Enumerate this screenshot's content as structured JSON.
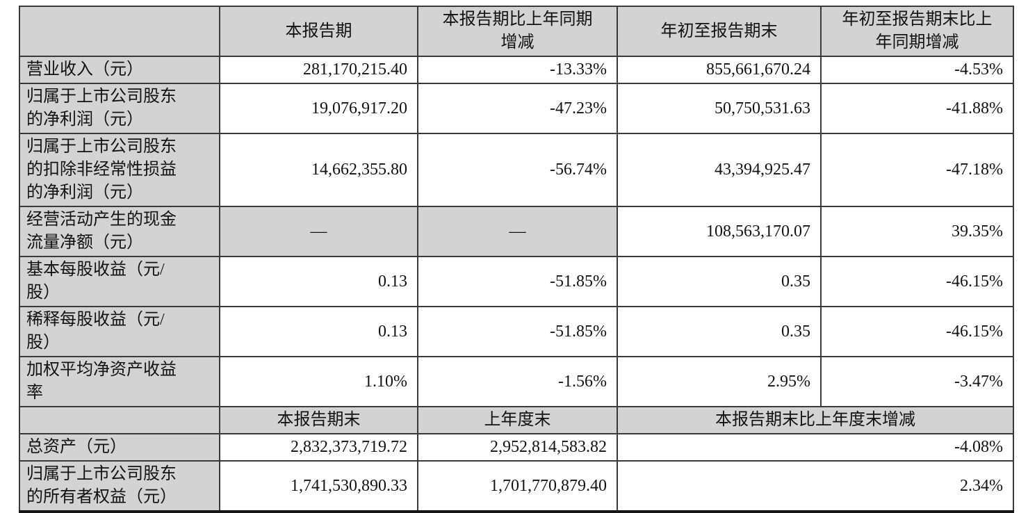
{
  "colors": {
    "cell_shading_gray": "#d3d3d3",
    "grid_line": "#3a3a3a",
    "text": "#121212"
  },
  "table": {
    "rows": [
      {
        "header": true,
        "cells": [
          {
            "t": "",
            "gray": true
          },
          {
            "t": "本报告期",
            "gray": true,
            "align": "center"
          },
          {
            "t": "本报告期比上年同期\n增减",
            "gray": true,
            "align": "center"
          },
          {
            "t": "年初至报告期末",
            "gray": true,
            "align": "center"
          },
          {
            "t": "年初至报告期末比上\n年同期增减",
            "gray": true,
            "align": "center"
          }
        ]
      },
      {
        "cells": [
          {
            "t": "营业收入（元）",
            "gray": true,
            "align": "left"
          },
          {
            "t": "281,170,215.40",
            "align": "right"
          },
          {
            "t": "-13.33%",
            "align": "right"
          },
          {
            "t": "855,661,670.24",
            "align": "right"
          },
          {
            "t": "-4.53%",
            "align": "right"
          }
        ]
      },
      {
        "cells": [
          {
            "t": "归属于上市公司股东\n的净利润（元）",
            "gray": true,
            "align": "left"
          },
          {
            "t": "19,076,917.20",
            "align": "right"
          },
          {
            "t": "-47.23%",
            "align": "right"
          },
          {
            "t": "50,750,531.63",
            "align": "right"
          },
          {
            "t": "-41.88%",
            "align": "right"
          }
        ]
      },
      {
        "cells": [
          {
            "t": "归属于上市公司股东\n的扣除非经常性损益\n的净利润（元）",
            "gray": true,
            "align": "left"
          },
          {
            "t": "14,662,355.80",
            "align": "right"
          },
          {
            "t": "-56.74%",
            "align": "right"
          },
          {
            "t": "43,394,925.47",
            "align": "right"
          },
          {
            "t": "-47.18%",
            "align": "right"
          }
        ]
      },
      {
        "cells": [
          {
            "t": "经营活动产生的现金\n流量净额（元）",
            "gray": true,
            "align": "left"
          },
          {
            "t": "—",
            "gray": true,
            "align": "center"
          },
          {
            "t": "—",
            "gray": true,
            "align": "center"
          },
          {
            "t": "108,563,170.07",
            "align": "right"
          },
          {
            "t": "39.35%",
            "align": "right"
          }
        ]
      },
      {
        "cells": [
          {
            "t": "基本每股收益（元/\n股）",
            "gray": true,
            "align": "left"
          },
          {
            "t": "0.13",
            "align": "right"
          },
          {
            "t": "-51.85%",
            "align": "right"
          },
          {
            "t": "0.35",
            "align": "right"
          },
          {
            "t": "-46.15%",
            "align": "right"
          }
        ]
      },
      {
        "cells": [
          {
            "t": "稀释每股收益（元/\n股）",
            "gray": true,
            "align": "left"
          },
          {
            "t": "0.13",
            "align": "right"
          },
          {
            "t": "-51.85%",
            "align": "right"
          },
          {
            "t": "0.35",
            "align": "right"
          },
          {
            "t": "-46.15%",
            "align": "right"
          }
        ]
      },
      {
        "cells": [
          {
            "t": "加权平均净资产收益\n率",
            "gray": true,
            "align": "left"
          },
          {
            "t": "1.10%",
            "align": "right"
          },
          {
            "t": "-1.56%",
            "align": "right"
          },
          {
            "t": "2.95%",
            "align": "right"
          },
          {
            "t": "-3.47%",
            "align": "right"
          }
        ]
      },
      {
        "header": true,
        "cells": [
          {
            "t": "",
            "gray": true
          },
          {
            "t": "本报告期末",
            "gray": true,
            "align": "center"
          },
          {
            "t": "上年度末",
            "gray": true,
            "align": "center"
          },
          {
            "t": "本报告期末比上年度末增减",
            "gray": true,
            "align": "center",
            "colspan": 2
          }
        ]
      },
      {
        "cells": [
          {
            "t": "总资产（元）",
            "gray": true,
            "align": "left"
          },
          {
            "t": "2,832,373,719.72",
            "align": "right"
          },
          {
            "t": "2,952,814,583.82",
            "align": "right"
          },
          {
            "t": "-4.08%",
            "align": "right",
            "colspan": 2
          }
        ]
      },
      {
        "cells": [
          {
            "t": "归属于上市公司股东\n的所有者权益（元）",
            "gray": true,
            "align": "left"
          },
          {
            "t": "1,741,530,890.33",
            "align": "right"
          },
          {
            "t": "1,701,770,879.40",
            "align": "right"
          },
          {
            "t": "2.34%",
            "align": "right",
            "colspan": 2
          }
        ]
      }
    ]
  }
}
